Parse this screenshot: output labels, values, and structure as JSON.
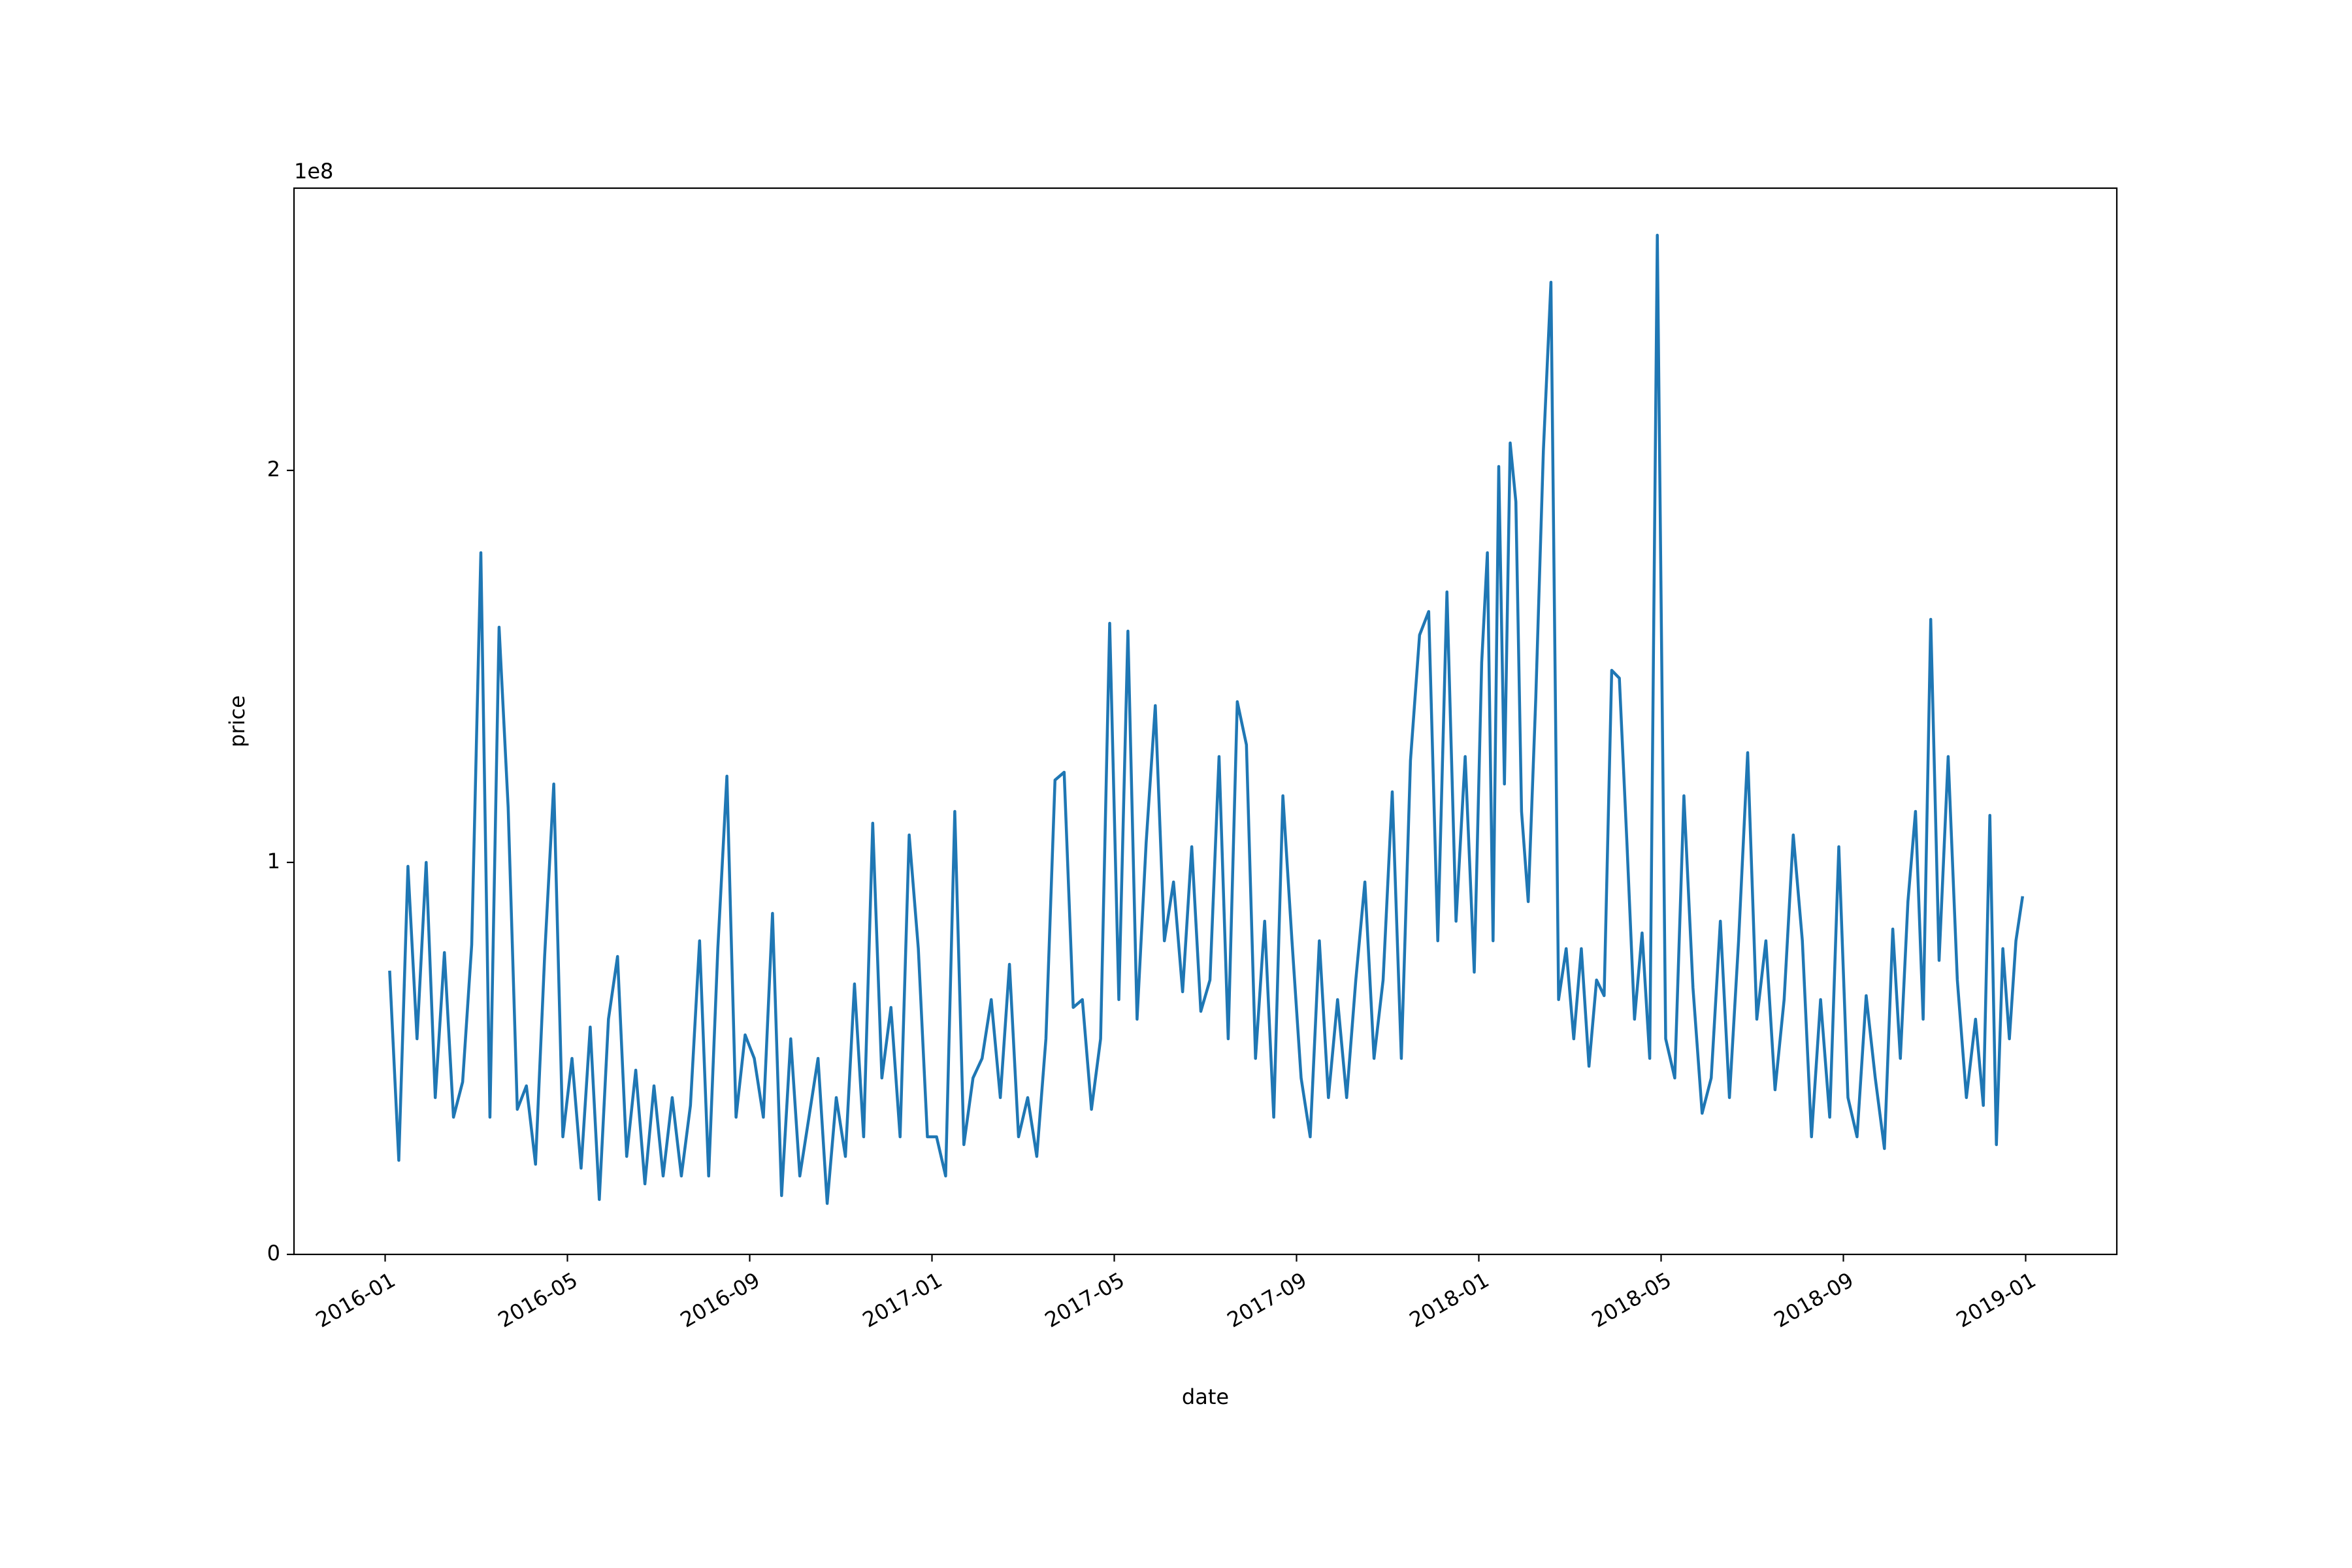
{
  "chart_data": {
    "type": "line",
    "x_label": "date",
    "y_label": "price",
    "y_offset_label": "1e8",
    "color": "#1f77b4",
    "xlim": [
      "2015-11",
      "2019-03"
    ],
    "xticks": [
      "2016-01",
      "2016-05",
      "2016-09",
      "2017-01",
      "2017-05",
      "2017-09",
      "2018-01",
      "2018-05",
      "2018-09",
      "2019-01"
    ],
    "ylim": [
      0,
      2.72
    ],
    "yticks": [
      0,
      1,
      2
    ],
    "grid": false,
    "x": [
      "2016-01",
      "2016-01",
      "2016-01",
      "2016-01",
      "2016-01",
      "2016-02",
      "2016-02",
      "2016-02",
      "2016-02",
      "2016-02",
      "2016-03",
      "2016-03",
      "2016-03",
      "2016-03",
      "2016-03",
      "2016-04",
      "2016-04",
      "2016-04",
      "2016-04",
      "2016-04",
      "2016-05",
      "2016-05",
      "2016-05",
      "2016-05",
      "2016-05",
      "2016-06",
      "2016-06",
      "2016-06",
      "2016-06",
      "2016-06",
      "2016-07",
      "2016-07",
      "2016-07",
      "2016-07",
      "2016-07",
      "2016-08",
      "2016-08",
      "2016-08",
      "2016-08",
      "2016-08",
      "2016-09",
      "2016-09",
      "2016-09",
      "2016-09",
      "2016-09",
      "2016-10",
      "2016-10",
      "2016-10",
      "2016-10",
      "2016-10",
      "2016-11",
      "2016-11",
      "2016-11",
      "2016-11",
      "2016-11",
      "2016-12",
      "2016-12",
      "2016-12",
      "2016-12",
      "2016-12",
      "2017-01",
      "2017-01",
      "2017-01",
      "2017-01",
      "2017-01",
      "2017-02",
      "2017-02",
      "2017-02",
      "2017-02",
      "2017-02",
      "2017-03",
      "2017-03",
      "2017-03",
      "2017-03",
      "2017-03",
      "2017-04",
      "2017-04",
      "2017-04",
      "2017-04",
      "2017-04",
      "2017-05",
      "2017-05",
      "2017-05",
      "2017-05",
      "2017-05",
      "2017-06",
      "2017-06",
      "2017-06",
      "2017-06",
      "2017-06",
      "2017-07",
      "2017-07",
      "2017-07",
      "2017-07",
      "2017-07",
      "2017-08",
      "2017-08",
      "2017-08",
      "2017-08",
      "2017-08",
      "2017-09",
      "2017-09",
      "2017-09",
      "2017-09",
      "2017-09",
      "2017-10",
      "2017-10",
      "2017-10",
      "2017-10",
      "2017-10",
      "2017-11",
      "2017-11",
      "2017-11",
      "2017-11",
      "2017-11",
      "2017-12",
      "2017-12",
      "2017-12",
      "2017-12",
      "2017-12",
      "2018-01",
      "2018-01",
      "2018-01",
      "2018-01",
      "2018-01",
      "2018-01",
      "2018-01",
      "2018-01",
      "2018-02",
      "2018-02",
      "2018-02",
      "2018-02",
      "2018-02",
      "2018-02",
      "2018-03",
      "2018-03",
      "2018-03",
      "2018-03",
      "2018-03",
      "2018-03",
      "2018-04",
      "2018-04",
      "2018-04",
      "2018-04",
      "2018-04",
      "2018-04",
      "2018-05",
      "2018-05",
      "2018-05",
      "2018-05",
      "2018-05",
      "2018-06",
      "2018-06",
      "2018-06",
      "2018-06",
      "2018-06",
      "2018-07",
      "2018-07",
      "2018-07",
      "2018-07",
      "2018-07",
      "2018-08",
      "2018-08",
      "2018-08",
      "2018-08",
      "2018-08",
      "2018-09",
      "2018-09",
      "2018-09",
      "2018-09",
      "2018-09",
      "2018-10",
      "2018-10",
      "2018-10",
      "2018-10",
      "2018-10",
      "2018-10",
      "2018-11",
      "2018-11",
      "2018-11",
      "2018-11",
      "2018-11",
      "2018-12",
      "2018-12",
      "2018-12",
      "2018-12",
      "2018-12",
      "2018-12",
      "2018-12"
    ],
    "values": [
      0.72,
      0.24,
      0.99,
      0.55,
      1.0,
      0.4,
      0.77,
      0.35,
      0.44,
      0.79,
      1.79,
      0.35,
      1.6,
      1.14,
      0.37,
      0.43,
      0.23,
      0.76,
      1.2,
      0.3,
      0.5,
      0.22,
      0.58,
      0.14,
      0.6,
      0.76,
      0.25,
      0.47,
      0.18,
      0.43,
      0.2,
      0.4,
      0.2,
      0.38,
      0.8,
      0.2,
      0.78,
      1.22,
      0.35,
      0.56,
      0.5,
      0.35,
      0.87,
      0.15,
      0.55,
      0.2,
      0.35,
      0.5,
      0.13,
      0.4,
      0.25,
      0.69,
      0.3,
      1.1,
      0.45,
      0.63,
      0.3,
      1.07,
      0.78,
      0.3,
      0.3,
      0.2,
      1.13,
      0.28,
      0.45,
      0.5,
      0.65,
      0.4,
      0.74,
      0.3,
      0.4,
      0.25,
      0.55,
      1.21,
      1.23,
      0.63,
      0.65,
      0.37,
      0.55,
      1.61,
      0.65,
      1.59,
      0.6,
      1.05,
      1.4,
      0.8,
      0.95,
      0.67,
      1.04,
      0.62,
      0.7,
      1.27,
      0.55,
      1.41,
      1.3,
      0.5,
      0.85,
      0.35,
      1.17,
      0.8,
      0.45,
      0.3,
      0.8,
      0.4,
      0.65,
      0.4,
      0.7,
      0.95,
      0.5,
      0.7,
      1.18,
      0.5,
      1.26,
      1.58,
      1.64,
      0.8,
      1.69,
      0.85,
      1.27,
      0.72,
      1.51,
      1.79,
      0.8,
      2.01,
      1.2,
      2.07,
      1.92,
      1.13,
      0.9,
      1.42,
      2.05,
      2.48,
      0.65,
      0.78,
      0.55,
      0.78,
      0.48,
      0.7,
      0.66,
      1.49,
      1.47,
      1.05,
      0.6,
      0.82,
      0.5,
      2.6,
      0.55,
      0.45,
      1.17,
      0.68,
      0.36,
      0.45,
      0.85,
      0.4,
      0.8,
      1.28,
      0.6,
      0.8,
      0.42,
      0.65,
      1.07,
      0.8,
      0.3,
      0.65,
      0.35,
      1.04,
      0.4,
      0.3,
      0.66,
      0.45,
      0.27,
      0.83,
      0.5,
      0.9,
      1.13,
      0.6,
      1.62,
      0.75,
      1.27,
      0.7,
      0.4,
      0.6,
      0.38,
      1.12,
      0.28,
      0.78,
      0.55,
      0.8,
      0.91
    ]
  }
}
